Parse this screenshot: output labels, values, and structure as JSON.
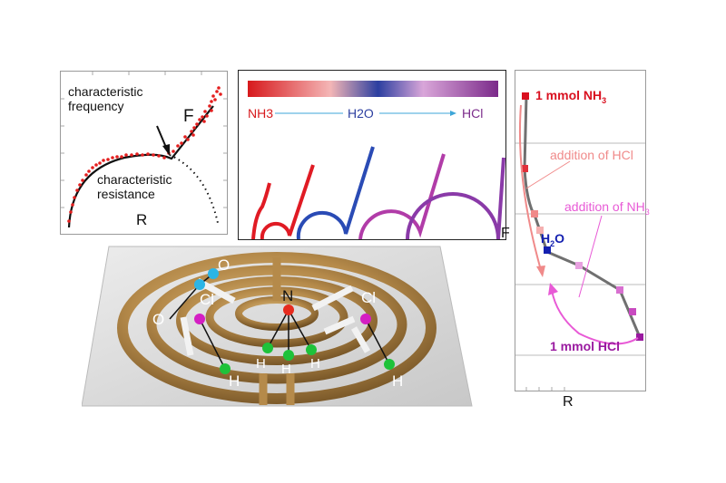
{
  "panel_fit": {
    "label_characteristic_frequency": [
      "characteristic",
      "frequency"
    ],
    "label_characteristic_resistance": [
      "characteristic",
      "resistance"
    ],
    "label_F": "F",
    "label_R": "R"
  },
  "panel_scale": {
    "left_label": "NH3",
    "mid_label": "H2O",
    "right_label": "HCl",
    "gradient_colors": [
      "#d7191c",
      "#f4b6b6",
      "#2c3fa0",
      "#d9a6d9",
      "#7b2a8a"
    ],
    "arc_colors": [
      "#e01b24",
      "#e01b24",
      "#2a4bb5",
      "#b13ca8",
      "#8a3aa8"
    ]
  },
  "sensor": {
    "atoms": {
      "O": "O",
      "N": "N",
      "Cl": "Cl",
      "H": "H"
    },
    "atom_colors": {
      "O": "#2bb5e6",
      "N": "#e62b1e",
      "Cl": "#d41ec3",
      "H": "#1ec23a"
    }
  },
  "panel_trajectory": {
    "axis_F": "F",
    "axis_R": "R",
    "start_label": "1 mmol NH",
    "start_sub": "3",
    "add_hcl_label": "addition of HCl",
    "add_nh3_label": "addition of NH",
    "add_nh3_sub": "3",
    "water_label": "H",
    "water_sub": "2",
    "water_suffix": "O",
    "end_label": "1 mmol HCl",
    "colors": {
      "nh3": "#d9101f",
      "hcl_arrow": "#f08a8a",
      "water": "#1420b0",
      "nh3_arrow": "#e85ad6",
      "hcl_end": "#9a1aa0",
      "line": "#707070"
    }
  }
}
